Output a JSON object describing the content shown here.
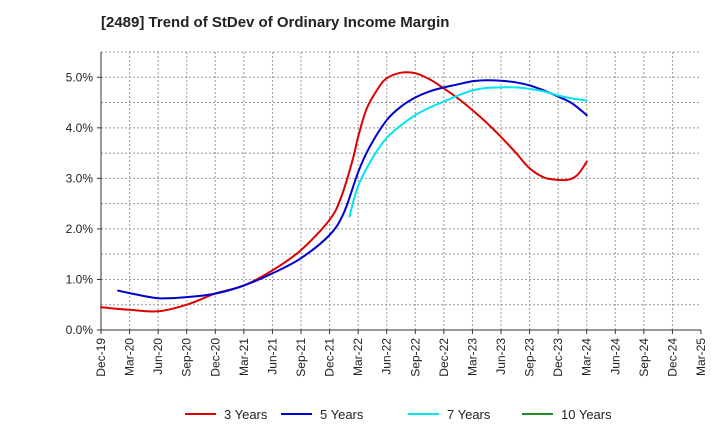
{
  "chart_data": {
    "type": "line",
    "title": "[2489]  Trend of StDev of Ordinary Income Margin",
    "xlabel": "",
    "ylabel": "",
    "ylim": [
      0,
      5.5
    ],
    "y_ticks": [
      0,
      1,
      2,
      3,
      4,
      5
    ],
    "y_tick_labels": [
      "0.0%",
      "1.0%",
      "2.0%",
      "3.0%",
      "4.0%",
      "5.0%"
    ],
    "x_tick_labels": [
      "Dec-19",
      "Mar-20",
      "Jun-20",
      "Sep-20",
      "Dec-20",
      "Mar-21",
      "Jun-21",
      "Sep-21",
      "Dec-21",
      "Mar-22",
      "Jun-22",
      "Sep-22",
      "Dec-22",
      "Mar-23",
      "Jun-23",
      "Sep-23",
      "Dec-23",
      "Mar-24",
      "Jun-24",
      "Sep-24",
      "Dec-24",
      "Mar-25"
    ],
    "grid": true,
    "legend_position": "bottom",
    "series": [
      {
        "name": "3 Years",
        "color": "#dd0000",
        "points": [
          [
            0,
            0.45
          ],
          [
            1,
            0.4
          ],
          [
            2,
            0.37
          ],
          [
            3,
            0.5
          ],
          [
            4,
            0.72
          ],
          [
            5,
            0.88
          ],
          [
            6,
            1.18
          ],
          [
            7,
            1.58
          ],
          [
            8,
            2.18
          ],
          [
            8.4,
            2.62
          ],
          [
            8.8,
            3.35
          ],
          [
            9,
            3.82
          ],
          [
            9.3,
            4.38
          ],
          [
            9.7,
            4.78
          ],
          [
            10,
            4.98
          ],
          [
            10.5,
            5.09
          ],
          [
            11,
            5.08
          ],
          [
            11.5,
            4.96
          ],
          [
            12,
            4.78
          ],
          [
            12.5,
            4.58
          ],
          [
            13,
            4.35
          ],
          [
            13.5,
            4.1
          ],
          [
            14,
            3.82
          ],
          [
            14.5,
            3.52
          ],
          [
            15,
            3.2
          ],
          [
            15.5,
            3.02
          ],
          [
            16,
            2.97
          ],
          [
            16.4,
            2.98
          ],
          [
            16.7,
            3.08
          ],
          [
            17,
            3.33
          ]
        ]
      },
      {
        "name": "5 Years",
        "color": "#0000cc",
        "points": [
          [
            0.6,
            0.78
          ],
          [
            1,
            0.73
          ],
          [
            2,
            0.63
          ],
          [
            3,
            0.65
          ],
          [
            4,
            0.72
          ],
          [
            5,
            0.88
          ],
          [
            6,
            1.12
          ],
          [
            7,
            1.42
          ],
          [
            8,
            1.88
          ],
          [
            8.5,
            2.32
          ],
          [
            9,
            3.12
          ],
          [
            9.4,
            3.62
          ],
          [
            10,
            4.15
          ],
          [
            10.5,
            4.42
          ],
          [
            11,
            4.6
          ],
          [
            11.5,
            4.72
          ],
          [
            12,
            4.8
          ],
          [
            12.5,
            4.86
          ],
          [
            13,
            4.92
          ],
          [
            13.5,
            4.94
          ],
          [
            14,
            4.93
          ],
          [
            14.5,
            4.9
          ],
          [
            15,
            4.84
          ],
          [
            15.5,
            4.74
          ],
          [
            16,
            4.62
          ],
          [
            16.5,
            4.48
          ],
          [
            17,
            4.25
          ]
        ]
      },
      {
        "name": "7 Years",
        "color": "#00e5ee",
        "points": [
          [
            8.7,
            2.25
          ],
          [
            9,
            2.85
          ],
          [
            9.5,
            3.4
          ],
          [
            10,
            3.8
          ],
          [
            10.5,
            4.05
          ],
          [
            11,
            4.25
          ],
          [
            11.5,
            4.4
          ],
          [
            12,
            4.52
          ],
          [
            12.5,
            4.64
          ],
          [
            13,
            4.74
          ],
          [
            13.5,
            4.79
          ],
          [
            14,
            4.8
          ],
          [
            14.5,
            4.8
          ],
          [
            15,
            4.77
          ],
          [
            15.5,
            4.72
          ],
          [
            16,
            4.64
          ],
          [
            16.5,
            4.58
          ],
          [
            17,
            4.54
          ]
        ]
      },
      {
        "name": "10 Years",
        "color": "#228b22",
        "points": []
      }
    ]
  }
}
